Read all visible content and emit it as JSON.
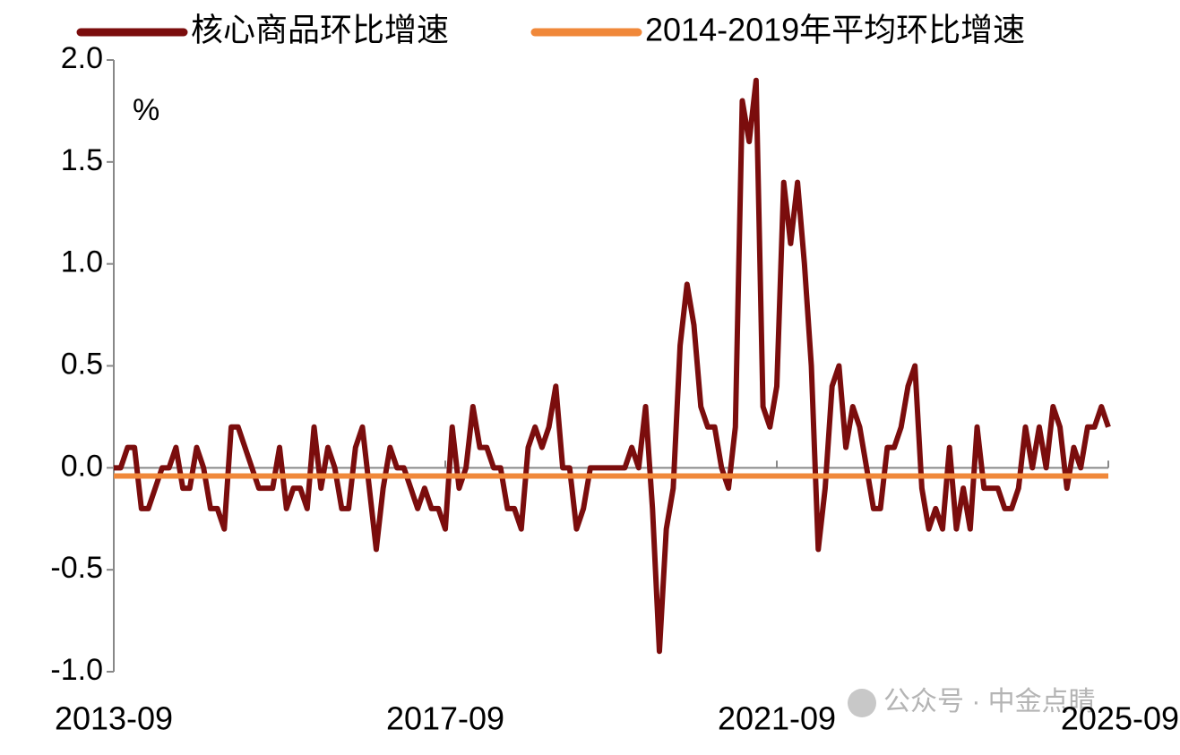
{
  "chart_data": {
    "type": "line",
    "y_label": "%",
    "watermark": "公众号 · 中金点睛",
    "categories": [
      "2013-09",
      null,
      null,
      null,
      null,
      null,
      null,
      null,
      null,
      null,
      null,
      null,
      null,
      null,
      null,
      null,
      null,
      null,
      null,
      null,
      null,
      null,
      null,
      null,
      null,
      null,
      null,
      null,
      null,
      null,
      null,
      null,
      null,
      null,
      null,
      null,
      null,
      null,
      null,
      null,
      null,
      null,
      null,
      null,
      null,
      null,
      null,
      null,
      "2017-09",
      null,
      null,
      null,
      null,
      null,
      null,
      null,
      null,
      null,
      null,
      null,
      null,
      null,
      null,
      null,
      null,
      null,
      null,
      null,
      null,
      null,
      null,
      null,
      null,
      null,
      null,
      null,
      null,
      null,
      null,
      null,
      null,
      null,
      null,
      null,
      null,
      null,
      null,
      null,
      null,
      null,
      null,
      null,
      null,
      null,
      null,
      null,
      "2021-09",
      null,
      null,
      null,
      null,
      null,
      null,
      null,
      null,
      null,
      null,
      null,
      null,
      null,
      null,
      null,
      null,
      null,
      null,
      null,
      null,
      null,
      null,
      null,
      null,
      null,
      null,
      null,
      null,
      null,
      null,
      null,
      null,
      null,
      null,
      null,
      null,
      null,
      null,
      null,
      null,
      null,
      null,
      null,
      null,
      null,
      null,
      null,
      "2025-09"
    ],
    "series": [
      {
        "name": "核心商品环比增速",
        "color": "#7b0d0d",
        "values": [
          0,
          0,
          0.1,
          0.1,
          -0.2,
          -0.2,
          -0.1,
          0,
          0,
          0.1,
          -0.1,
          -0.1,
          0.1,
          0,
          -0.2,
          -0.2,
          -0.3,
          0.2,
          0.2,
          0.1,
          0,
          -0.1,
          -0.1,
          -0.1,
          0.1,
          -0.2,
          -0.1,
          -0.1,
          -0.2,
          0.2,
          -0.1,
          0.1,
          0,
          -0.2,
          -0.2,
          0.1,
          0.2,
          -0.1,
          -0.4,
          -0.1,
          0.1,
          0,
          0,
          -0.1,
          -0.2,
          -0.1,
          -0.2,
          -0.2,
          -0.3,
          0.2,
          -0.1,
          0,
          0.3,
          0.1,
          0.1,
          0,
          0,
          -0.2,
          -0.2,
          -0.3,
          0.1,
          0.2,
          0.1,
          0.2,
          0.4,
          0,
          0,
          -0.3,
          -0.2,
          0,
          0,
          0,
          0,
          0,
          0,
          0.1,
          0,
          0.3,
          -0.2,
          -0.9,
          -0.3,
          -0.1,
          0.6,
          0.9,
          0.7,
          0.3,
          0.2,
          0.2,
          0,
          -0.1,
          0.2,
          1.8,
          1.6,
          1.9,
          0.3,
          0.2,
          0.4,
          1.4,
          1.1,
          1.4,
          1.0,
          0.5,
          -0.4,
          -0.1,
          0.4,
          0.5,
          0.1,
          0.3,
          0.2,
          0,
          -0.2,
          -0.2,
          0.1,
          0.1,
          0.2,
          0.4,
          0.5,
          -0.1,
          -0.3,
          -0.2,
          -0.3,
          0.1,
          -0.3,
          -0.1,
          -0.3,
          0.2,
          -0.1,
          -0.1,
          -0.1,
          -0.2,
          -0.2,
          -0.1,
          0.2,
          0,
          0.2,
          0,
          0.3,
          0.2,
          -0.1,
          0.1,
          0,
          0.2,
          0.2,
          0.3,
          0.2
        ]
      },
      {
        "name": "2014-2019年平均环比增速",
        "color": "#f0883a",
        "values": [
          -0.04,
          -0.04,
          -0.04,
          -0.04,
          -0.04,
          -0.04,
          -0.04,
          -0.04,
          -0.04,
          -0.04,
          -0.04,
          -0.04,
          -0.04,
          -0.04,
          -0.04,
          -0.04,
          -0.04,
          -0.04,
          -0.04,
          -0.04,
          -0.04,
          -0.04,
          -0.04,
          -0.04,
          -0.04,
          -0.04,
          -0.04,
          -0.04,
          -0.04,
          -0.04,
          -0.04,
          -0.04,
          -0.04,
          -0.04,
          -0.04,
          -0.04,
          -0.04,
          -0.04,
          -0.04,
          -0.04,
          -0.04,
          -0.04,
          -0.04,
          -0.04,
          -0.04,
          -0.04,
          -0.04,
          -0.04,
          -0.04,
          -0.04,
          -0.04,
          -0.04,
          -0.04,
          -0.04,
          -0.04,
          -0.04,
          -0.04,
          -0.04,
          -0.04,
          -0.04,
          -0.04,
          -0.04,
          -0.04,
          -0.04,
          -0.04,
          -0.04,
          -0.04,
          -0.04,
          -0.04,
          -0.04,
          -0.04,
          -0.04,
          -0.04,
          -0.04,
          -0.04,
          -0.04,
          -0.04,
          -0.04,
          -0.04,
          -0.04,
          -0.04,
          -0.04,
          -0.04,
          -0.04,
          -0.04,
          -0.04,
          -0.04,
          -0.04,
          -0.04,
          -0.04,
          -0.04,
          -0.04,
          -0.04,
          -0.04,
          -0.04,
          -0.04,
          -0.04,
          -0.04,
          -0.04,
          -0.04,
          -0.04,
          -0.04,
          -0.04,
          -0.04,
          -0.04,
          -0.04,
          -0.04,
          -0.04,
          -0.04,
          -0.04,
          -0.04,
          -0.04,
          -0.04,
          -0.04,
          -0.04,
          -0.04,
          -0.04,
          -0.04,
          -0.04,
          -0.04,
          -0.04,
          -0.04,
          -0.04,
          -0.04,
          -0.04,
          -0.04,
          -0.04,
          -0.04,
          -0.04,
          -0.04,
          -0.04,
          -0.04,
          -0.04,
          -0.04,
          -0.04,
          -0.04,
          -0.04,
          -0.04,
          -0.04,
          -0.04,
          -0.04,
          -0.04,
          -0.04,
          -0.04,
          -0.04
        ]
      }
    ],
    "ylim": [
      -1.0,
      2.0
    ],
    "yticks": [
      {
        "value": 2.0,
        "label": "2.0"
      },
      1.5,
      {
        "value": 1.0,
        "label": "1.0"
      },
      0.5,
      {
        "value": 0.0,
        "label": "0.0"
      },
      -0.5,
      {
        "value": -1.0,
        "label": "-1.0"
      }
    ],
    "grid": false,
    "legend": "top"
  }
}
